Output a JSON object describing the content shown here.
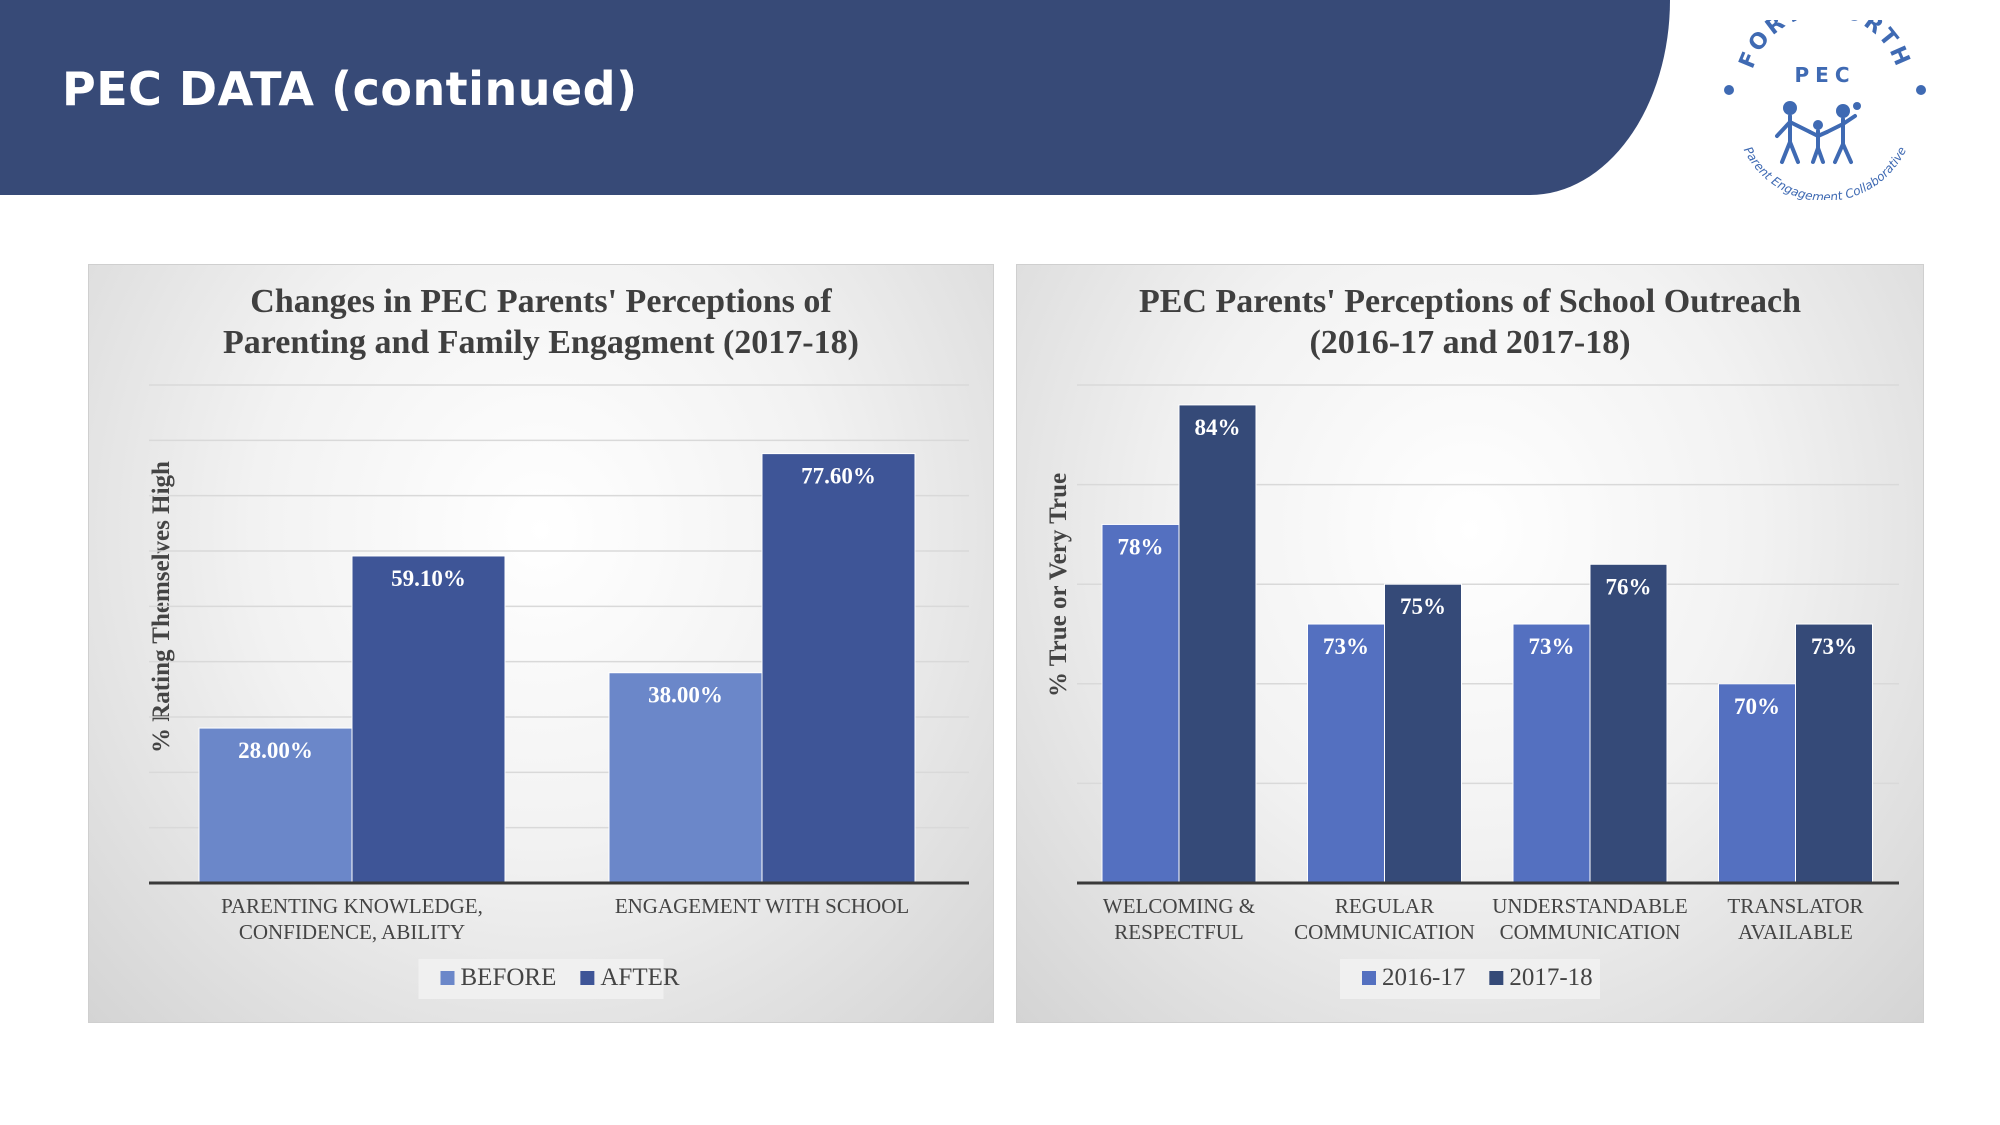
{
  "header": {
    "title": "PEC DATA (continued)",
    "logo": {
      "top_text": "FORT WORTH",
      "mid_text": "PEC",
      "bottom_text": "Parent Engagement Collaborative"
    }
  },
  "colors": {
    "banner": "#374a77",
    "before": "#6b87c9",
    "after": "#3e5597",
    "y2016": "#5470c0",
    "y2017": "#354a78"
  },
  "chart_data": [
    {
      "type": "bar",
      "title_lines": [
        "Changes in PEC Parents' Perceptions of",
        "Parenting and Family Engagment (2017-18)"
      ],
      "xlabel": "",
      "ylabel": "% Rating Themselves High",
      "categories": [
        [
          "PARENTING KNOWLEDGE,",
          "CONFIDENCE, ABILITY"
        ],
        [
          "ENGAGEMENT WITH SCHOOL"
        ]
      ],
      "series": [
        {
          "name": "BEFORE",
          "values": [
            28.0,
            38.0
          ],
          "labels": [
            "28.00%",
            "38.00%"
          ],
          "color": "#6b87c9"
        },
        {
          "name": "AFTER",
          "values": [
            59.1,
            77.6
          ],
          "labels": [
            "59.10%",
            "77.60%"
          ],
          "color": "#3e5597"
        }
      ],
      "ylim": [
        0,
        90
      ],
      "grid": true,
      "legend": "bottom"
    },
    {
      "type": "bar",
      "title_lines": [
        "PEC Parents' Perceptions of School Outreach",
        "(2016-17 and 2017-18)"
      ],
      "xlabel": "",
      "ylabel": "% True or Very True",
      "categories": [
        [
          "WELCOMING  &",
          "RESPECTFUL"
        ],
        [
          "REGULAR",
          "COMMUNICATION"
        ],
        [
          "UNDERSTANDABLE",
          "COMMUNICATION"
        ],
        [
          "TRANSLATOR",
          "AVAILABLE"
        ]
      ],
      "series": [
        {
          "name": "2016-17",
          "values": [
            78,
            73,
            73,
            70
          ],
          "labels": [
            "78%",
            "73%",
            "73%",
            "70%"
          ],
          "color": "#5470c0"
        },
        {
          "name": "2017-18",
          "values": [
            84,
            75,
            76,
            73
          ],
          "labels": [
            "84%",
            "75%",
            "76%",
            "73%"
          ],
          "color": "#354a78"
        }
      ],
      "ylim": [
        60,
        85
      ],
      "grid": true,
      "legend": "bottom"
    }
  ]
}
